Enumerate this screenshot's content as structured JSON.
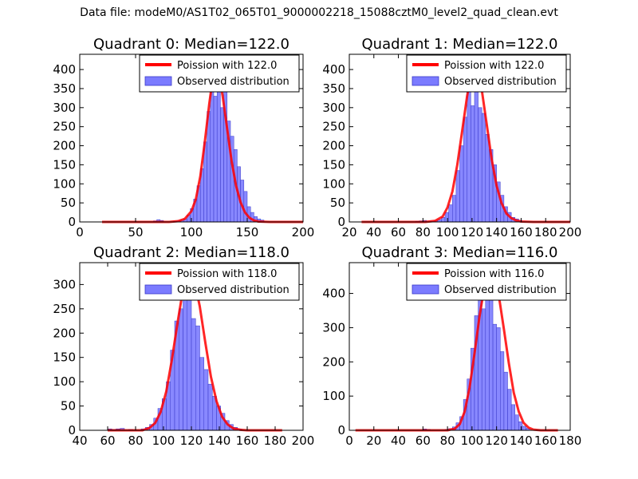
{
  "suptitle": "Data file: modeM0/AS1T02_065T01_9000002218_15088cztM0_level2_quad_clean.evt",
  "colors": {
    "bar": "#7b7bff",
    "bar_edge": "#3a3ac8",
    "curve": "#ff0000"
  },
  "chart_data": [
    {
      "type": "bar",
      "title": "Quadrant 0: Median=122.0",
      "xlim": [
        0,
        200
      ],
      "ylim": [
        0,
        440
      ],
      "xticks": [
        0,
        50,
        100,
        150,
        200
      ],
      "yticks": [
        0,
        50,
        100,
        150,
        200,
        250,
        300,
        350,
        400
      ],
      "legend": [
        "Poission with 122.0",
        "Observed distribution"
      ],
      "bins": [
        [
          66,
          69,
          3
        ],
        [
          69,
          72,
          6
        ],
        [
          72,
          75,
          4
        ],
        [
          84,
          87,
          2
        ],
        [
          87,
          90,
          3
        ],
        [
          90,
          93,
          5
        ],
        [
          93,
          96,
          8
        ],
        [
          96,
          99,
          18
        ],
        [
          99,
          102,
          35
        ],
        [
          102,
          105,
          60
        ],
        [
          105,
          108,
          95
        ],
        [
          108,
          111,
          140
        ],
        [
          111,
          114,
          210
        ],
        [
          114,
          117,
          290
        ],
        [
          117,
          120,
          360
        ],
        [
          120,
          123,
          330
        ],
        [
          123,
          126,
          410
        ],
        [
          126,
          129,
          300
        ],
        [
          129,
          132,
          355
        ],
        [
          132,
          135,
          265
        ],
        [
          135,
          138,
          225
        ],
        [
          138,
          141,
          190
        ],
        [
          141,
          144,
          145
        ],
        [
          144,
          147,
          110
        ],
        [
          147,
          150,
          80
        ],
        [
          150,
          153,
          40
        ],
        [
          153,
          156,
          25
        ],
        [
          156,
          159,
          14
        ],
        [
          159,
          162,
          8
        ],
        [
          162,
          165,
          5
        ]
      ],
      "curve": [
        [
          20,
          0
        ],
        [
          80,
          0
        ],
        [
          88,
          2
        ],
        [
          94,
          8
        ],
        [
          100,
          28
        ],
        [
          104,
          60
        ],
        [
          108,
          120
        ],
        [
          112,
          210
        ],
        [
          116,
          310
        ],
        [
          120,
          395
        ],
        [
          122,
          420
        ],
        [
          124,
          400
        ],
        [
          128,
          330
        ],
        [
          132,
          245
        ],
        [
          136,
          160
        ],
        [
          140,
          95
        ],
        [
          144,
          52
        ],
        [
          148,
          25
        ],
        [
          152,
          11
        ],
        [
          156,
          4
        ],
        [
          160,
          1
        ],
        [
          170,
          0
        ],
        [
          200,
          0
        ]
      ]
    },
    {
      "type": "bar",
      "title": "Quadrant 1: Median=122.0",
      "xlim": [
        20,
        200
      ],
      "ylim": [
        0,
        440
      ],
      "xticks": [
        20,
        40,
        60,
        80,
        100,
        120,
        140,
        160,
        180,
        200
      ],
      "yticks": [
        0,
        50,
        100,
        150,
        200,
        250,
        300,
        350,
        400
      ],
      "legend": [
        "Poission with 122.0",
        "Observed distribution"
      ],
      "bins": [
        [
          74,
          77,
          2
        ],
        [
          77,
          80,
          3
        ],
        [
          80,
          83,
          4
        ],
        [
          86,
          89,
          2
        ],
        [
          89,
          92,
          3
        ],
        [
          92,
          95,
          6
        ],
        [
          95,
          98,
          12
        ],
        [
          98,
          101,
          25
        ],
        [
          101,
          104,
          45
        ],
        [
          104,
          107,
          70
        ],
        [
          107,
          110,
          135
        ],
        [
          110,
          113,
          200
        ],
        [
          113,
          116,
          275
        ],
        [
          116,
          119,
          370
        ],
        [
          119,
          122,
          305
        ],
        [
          122,
          125,
          380
        ],
        [
          125,
          128,
          300
        ],
        [
          128,
          131,
          285
        ],
        [
          131,
          134,
          230
        ],
        [
          134,
          137,
          190
        ],
        [
          137,
          140,
          150
        ],
        [
          140,
          143,
          105
        ],
        [
          143,
          146,
          70
        ],
        [
          146,
          149,
          40
        ],
        [
          149,
          152,
          25
        ],
        [
          152,
          155,
          12
        ],
        [
          155,
          158,
          8
        ],
        [
          158,
          161,
          4
        ]
      ],
      "curve": [
        [
          30,
          0
        ],
        [
          82,
          0
        ],
        [
          90,
          3
        ],
        [
          96,
          14
        ],
        [
          100,
          38
        ],
        [
          104,
          80
        ],
        [
          108,
          150
        ],
        [
          112,
          240
        ],
        [
          116,
          330
        ],
        [
          120,
          400
        ],
        [
          122,
          420
        ],
        [
          124,
          405
        ],
        [
          128,
          345
        ],
        [
          132,
          255
        ],
        [
          136,
          165
        ],
        [
          140,
          95
        ],
        [
          144,
          50
        ],
        [
          148,
          22
        ],
        [
          152,
          10
        ],
        [
          156,
          4
        ],
        [
          160,
          1
        ],
        [
          170,
          0
        ],
        [
          200,
          0
        ]
      ]
    },
    {
      "type": "bar",
      "title": "Quadrant 2: Median=118.0",
      "xlim": [
        40,
        200
      ],
      "ylim": [
        0,
        345
      ],
      "xticks": [
        40,
        60,
        80,
        100,
        120,
        140,
        160,
        180,
        200
      ],
      "yticks": [
        0,
        50,
        100,
        150,
        200,
        250,
        300
      ],
      "legend": [
        "Poission with 118.0",
        "Observed distribution"
      ],
      "bins": [
        [
          60,
          63,
          3
        ],
        [
          63,
          66,
          2
        ],
        [
          66,
          69,
          3
        ],
        [
          69,
          72,
          4
        ],
        [
          75,
          78,
          2
        ],
        [
          84,
          87,
          3
        ],
        [
          87,
          90,
          6
        ],
        [
          90,
          93,
          12
        ],
        [
          93,
          96,
          25
        ],
        [
          96,
          99,
          45
        ],
        [
          99,
          102,
          65
        ],
        [
          102,
          105,
          100
        ],
        [
          105,
          108,
          165
        ],
        [
          108,
          111,
          225
        ],
        [
          111,
          114,
          250
        ],
        [
          114,
          117,
          315
        ],
        [
          117,
          120,
          270
        ],
        [
          120,
          123,
          230
        ],
        [
          123,
          126,
          215
        ],
        [
          126,
          129,
          150
        ],
        [
          129,
          132,
          125
        ],
        [
          132,
          135,
          95
        ],
        [
          135,
          138,
          70
        ],
        [
          138,
          141,
          50
        ],
        [
          141,
          144,
          35
        ],
        [
          144,
          147,
          20
        ],
        [
          147,
          150,
          12
        ],
        [
          150,
          153,
          6
        ],
        [
          153,
          156,
          3
        ]
      ],
      "curve": [
        [
          60,
          0
        ],
        [
          85,
          0
        ],
        [
          90,
          5
        ],
        [
          94,
          15
        ],
        [
          98,
          38
        ],
        [
          102,
          80
        ],
        [
          106,
          145
        ],
        [
          110,
          220
        ],
        [
          114,
          290
        ],
        [
          117,
          320
        ],
        [
          119,
          328
        ],
        [
          122,
          310
        ],
        [
          126,
          255
        ],
        [
          130,
          180
        ],
        [
          134,
          110
        ],
        [
          138,
          60
        ],
        [
          142,
          28
        ],
        [
          146,
          12
        ],
        [
          150,
          4
        ],
        [
          155,
          1
        ],
        [
          160,
          0
        ],
        [
          185,
          0
        ]
      ]
    },
    {
      "type": "bar",
      "title": "Quadrant 3: Median=116.0",
      "xlim": [
        0,
        180
      ],
      "ylim": [
        0,
        490
      ],
      "xticks": [
        0,
        20,
        40,
        60,
        80,
        100,
        120,
        140,
        160,
        180
      ],
      "yticks": [
        0,
        100,
        200,
        300,
        400
      ],
      "legend": [
        "Poission with 116.0",
        "Observed distribution"
      ],
      "bins": [
        [
          60,
          63,
          4
        ],
        [
          63,
          66,
          3
        ],
        [
          78,
          81,
          3
        ],
        [
          81,
          84,
          5
        ],
        [
          84,
          87,
          10
        ],
        [
          87,
          90,
          22
        ],
        [
          90,
          93,
          40
        ],
        [
          93,
          96,
          90
        ],
        [
          96,
          99,
          150
        ],
        [
          99,
          102,
          240
        ],
        [
          102,
          105,
          335
        ],
        [
          105,
          108,
          385
        ],
        [
          108,
          111,
          355
        ],
        [
          111,
          114,
          425
        ],
        [
          114,
          117,
          380
        ],
        [
          117,
          120,
          310
        ],
        [
          120,
          123,
          300
        ],
        [
          123,
          126,
          230
        ],
        [
          126,
          129,
          170
        ],
        [
          129,
          132,
          120
        ],
        [
          132,
          135,
          75
        ],
        [
          135,
          138,
          45
        ],
        [
          138,
          141,
          25
        ],
        [
          141,
          144,
          12
        ],
        [
          144,
          147,
          6
        ]
      ],
      "curve": [
        [
          5,
          0
        ],
        [
          80,
          0
        ],
        [
          86,
          5
        ],
        [
          90,
          18
        ],
        [
          94,
          55
        ],
        [
          98,
          125
        ],
        [
          102,
          225
        ],
        [
          106,
          330
        ],
        [
          110,
          420
        ],
        [
          114,
          460
        ],
        [
          116,
          465
        ],
        [
          119,
          445
        ],
        [
          122,
          390
        ],
        [
          126,
          295
        ],
        [
          130,
          195
        ],
        [
          134,
          110
        ],
        [
          138,
          55
        ],
        [
          142,
          22
        ],
        [
          146,
          8
        ],
        [
          150,
          2
        ],
        [
          156,
          0
        ],
        [
          170,
          0
        ]
      ]
    }
  ]
}
